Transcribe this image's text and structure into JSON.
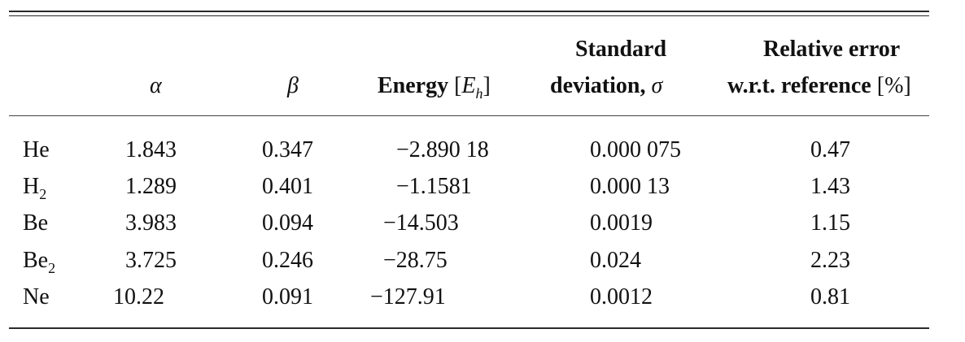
{
  "table": {
    "headers": {
      "alpha": "α",
      "beta": "β",
      "energy_label": "Energy",
      "energy_unit_open": "[",
      "energy_unit_var": "E",
      "energy_unit_sub": "h",
      "energy_unit_close": "]",
      "std_line1": "Standard",
      "std_line2": "deviation,",
      "std_symbol": "σ",
      "rel_line1": "Relative error",
      "rel_line2": "w.r.t. reference",
      "rel_unit": "[%]"
    },
    "rows": [
      {
        "name": "He",
        "name_sub": "",
        "alpha": "1.843",
        "beta": "0.347",
        "energy": "−2.890 18",
        "std": "0.000 075",
        "rel": "0.47"
      },
      {
        "name": "H",
        "name_sub": "2",
        "alpha": "1.289",
        "beta": "0.401",
        "energy": "−1.1581",
        "std": "0.000 13",
        "rel": "1.43"
      },
      {
        "name": "Be",
        "name_sub": "",
        "alpha": "3.983",
        "beta": "0.094",
        "energy": "−14.503",
        "std": "0.0019",
        "rel": "1.15"
      },
      {
        "name": "Be",
        "name_sub": "2",
        "alpha": "3.725",
        "beta": "0.246",
        "energy": "−28.75",
        "std": "0.024",
        "rel": "2.23"
      },
      {
        "name": "Ne",
        "name_sub": "",
        "alpha": "10.22",
        "beta": "0.091",
        "energy": "−127.91",
        "std": "0.0012",
        "rel": "0.81"
      }
    ]
  }
}
